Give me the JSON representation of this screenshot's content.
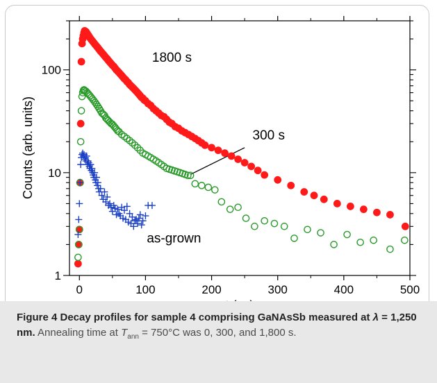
{
  "chart_data": {
    "type": "scatter",
    "xlabel": "t (ps)",
    "ylabel": "Counts (arb. units)",
    "xlim": [
      -15,
      500
    ],
    "ylim": [
      1,
      300
    ],
    "y_scale": "log",
    "x_ticks": [
      0,
      100,
      200,
      300,
      400,
      500
    ],
    "y_ticks": [
      1,
      10,
      100
    ],
    "grid": false,
    "series": [
      {
        "name": "1800 s",
        "marker": "filled-circle",
        "color": "#ff1a1a",
        "x": [
          -2,
          -1,
          0,
          1,
          2,
          3,
          4,
          5,
          6,
          7,
          8,
          10,
          12,
          14,
          16,
          18,
          20,
          22,
          24,
          26,
          28,
          30,
          32,
          34,
          36,
          38,
          40,
          42,
          44,
          46,
          48,
          50,
          52,
          54,
          56,
          58,
          60,
          62,
          64,
          66,
          68,
          70,
          72,
          74,
          76,
          78,
          80,
          82,
          84,
          86,
          88,
          90,
          92,
          94,
          96,
          98,
          100,
          104,
          108,
          112,
          116,
          120,
          124,
          128,
          132,
          136,
          140,
          145,
          150,
          155,
          160,
          165,
          170,
          175,
          180,
          185,
          190,
          200,
          210,
          220,
          230,
          240,
          250,
          260,
          270,
          280,
          300,
          320,
          340,
          355,
          370,
          390,
          410,
          430,
          450,
          470,
          493
        ],
        "y": [
          1.3,
          2.0,
          2.8,
          8.0,
          30,
          120,
          180,
          200,
          215,
          230,
          240,
          235,
          225,
          215,
          205,
          197,
          190,
          183,
          176,
          170,
          164,
          158,
          152,
          147,
          142,
          137,
          132,
          128,
          123,
          119,
          115,
          111,
          108,
          104,
          100,
          97,
          94,
          91,
          88,
          85,
          82,
          80,
          77,
          75,
          72,
          70,
          68,
          66,
          64,
          62,
          60,
          58,
          56,
          54,
          53,
          51,
          50,
          47,
          45,
          42,
          40,
          38,
          36,
          35,
          33,
          31,
          30,
          28,
          27,
          25.5,
          24.5,
          23.5,
          22.5,
          21.5,
          20.5,
          19.5,
          18.5,
          17.5,
          16.5,
          15.5,
          14.5,
          13.5,
          12.5,
          11.5,
          10.5,
          9.5,
          8.5,
          7.5,
          6.5,
          6.0,
          5.5,
          5.0,
          4.7,
          4.4,
          4.1,
          3.9,
          3.0
        ]
      },
      {
        "name": "300 s",
        "marker": "open-circle",
        "color": "#2a9a2a",
        "x": [
          -2,
          -1,
          0,
          1,
          2,
          3,
          4,
          5,
          6,
          7,
          8,
          10,
          12,
          14,
          16,
          18,
          20,
          22,
          24,
          26,
          28,
          30,
          32,
          34,
          36,
          38,
          40,
          42,
          44,
          46,
          48,
          50,
          52,
          54,
          56,
          58,
          60,
          64,
          68,
          72,
          76,
          80,
          84,
          88,
          92,
          96,
          100,
          104,
          108,
          112,
          116,
          120,
          124,
          128,
          132,
          136,
          140,
          144,
          148,
          152,
          156,
          160,
          164,
          168,
          175,
          185,
          195,
          205,
          215,
          228,
          240,
          252,
          265,
          280,
          295,
          310,
          325,
          345,
          365,
          385,
          405,
          425,
          445,
          470,
          492
        ],
        "y": [
          1.5,
          2.0,
          2.8,
          8.0,
          20,
          40,
          55,
          60,
          63,
          64,
          63,
          62,
          60,
          58,
          56,
          54,
          52,
          50,
          48,
          46,
          44,
          42,
          40,
          38,
          37,
          36,
          34,
          33,
          32,
          31,
          30,
          29.5,
          28.5,
          27.5,
          26.5,
          25.5,
          25,
          23.5,
          22.5,
          21.5,
          20.5,
          19.5,
          18.5,
          17.5,
          16.5,
          15.5,
          15,
          14.5,
          14,
          13.5,
          13,
          12.5,
          12,
          11.5,
          11,
          10.8,
          10.6,
          10.4,
          10.2,
          10,
          9.8,
          9.6,
          9.4,
          9.4,
          7.8,
          7.5,
          7.2,
          6.8,
          5.2,
          4.4,
          4.6,
          3.6,
          3.0,
          3.4,
          3.2,
          3.0,
          2.3,
          2.8,
          2.6,
          2.0,
          2.5,
          2.1,
          2.2,
          1.8,
          2.2
        ]
      },
      {
        "name": "as-grown",
        "marker": "plus",
        "color": "#1a3fc4",
        "x": [
          -2,
          -1,
          0,
          1,
          2,
          3,
          4,
          5,
          6,
          7,
          8,
          9,
          10,
          11,
          12,
          13,
          14,
          15,
          16,
          17,
          18,
          19,
          20,
          21,
          22,
          23,
          24,
          25,
          26,
          27,
          28,
          29,
          30,
          32,
          34,
          36,
          38,
          40,
          42,
          44,
          46,
          48,
          50,
          52,
          54,
          56,
          58,
          60,
          62,
          64,
          66,
          68,
          70,
          72,
          74,
          76,
          78,
          80,
          82,
          84,
          86,
          88,
          90,
          92,
          94,
          96,
          100,
          104,
          110
        ],
        "y": [
          2.5,
          3.5,
          5.0,
          8.0,
          12,
          14,
          15,
          15.5,
          14.5,
          15,
          13.5,
          14,
          13,
          14.5,
          12,
          13,
          12.5,
          11.5,
          11,
          12,
          10.5,
          11,
          10,
          9.5,
          9,
          10,
          8.5,
          8,
          9,
          7.5,
          8,
          7,
          6.5,
          7,
          6,
          5.5,
          6.5,
          5.2,
          5.8,
          4.8,
          5.0,
          4.6,
          4.2,
          4.8,
          4.5,
          3.9,
          4.4,
          4.0,
          3.8,
          4.6,
          3.6,
          4.3,
          3.5,
          4.7,
          3.3,
          4.0,
          3.2,
          3.7,
          3.0,
          3.4,
          3.5,
          3.2,
          3.6,
          3.9,
          3.1,
          3.4,
          3.8,
          4.8,
          4.8
        ]
      }
    ],
    "annotations": [
      {
        "text": "1800 s",
        "x": 110,
        "y": 120
      },
      {
        "text": "300 s",
        "x": 262,
        "y": 21
      },
      {
        "text": "as-grown",
        "x": 102,
        "y": 2.1
      }
    ]
  },
  "caption": {
    "bold_prefix": "Figure 4 Decay profiles for sample 4 comprising GaNAsSb measured at ",
    "lambda_symbol": "λ",
    "bold_suffix": " = 1,250 nm.",
    "text1": " Annealing time at ",
    "t_symbol": "T",
    "t_subscript": "ann",
    "text2": " = 750°C was 0, 300, and 1,800 s."
  },
  "colors": {
    "series_1800s": "#ff1a1a",
    "series_300s": "#2a9a2a",
    "series_asgrown": "#1a3fc4",
    "caption_band": "#e8e8e8",
    "frame": "#c9c9c9"
  }
}
